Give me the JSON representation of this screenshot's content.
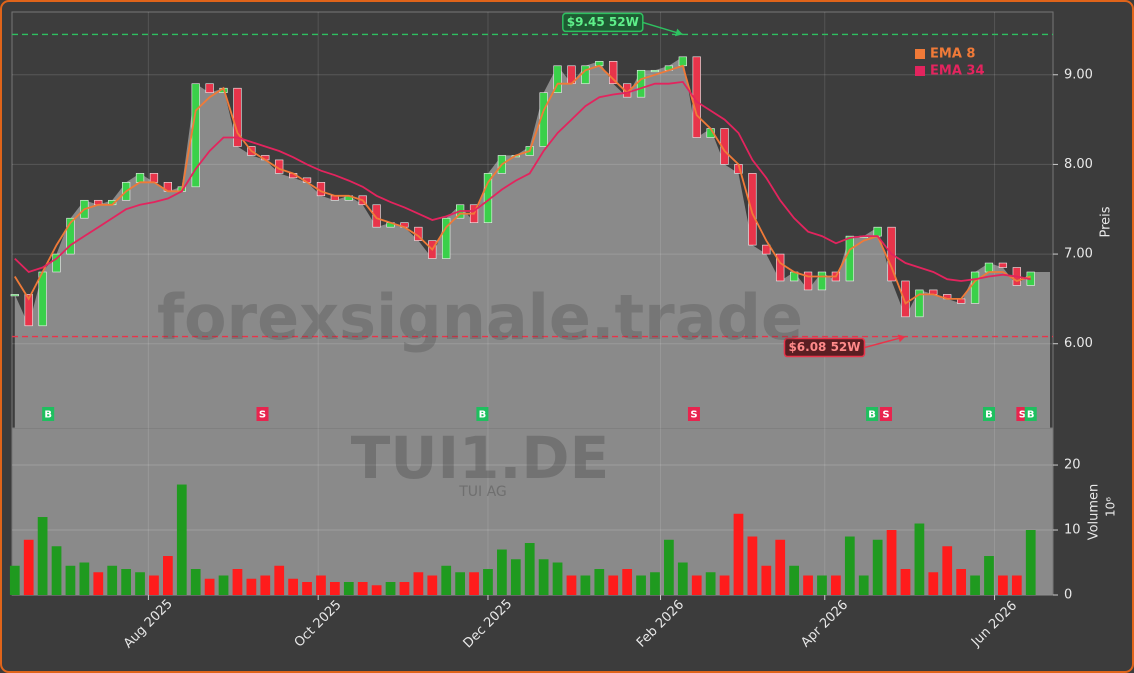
{
  "chart_data": [
    {
      "type": "candlestick",
      "watermark": "forexsignale.trade",
      "ticker": "TUI1.DE",
      "company": "TUI AG",
      "y_label": "Preis",
      "x": [
        0,
        5,
        10,
        15,
        20,
        25,
        30,
        35,
        40,
        45,
        50,
        55,
        60,
        65,
        70,
        75,
        80,
        85,
        90,
        95,
        100,
        105,
        110,
        115,
        120,
        125,
        130,
        135,
        140,
        145,
        150,
        155,
        160,
        165,
        170,
        175,
        180,
        185,
        190,
        195,
        200,
        205,
        210,
        215,
        220,
        225,
        230,
        235,
        240,
        245,
        250,
        255,
        260,
        265,
        270,
        275,
        280,
        285,
        290,
        295,
        300,
        305,
        310,
        315,
        320,
        325,
        330,
        335,
        340,
        345,
        350,
        355,
        360,
        365
      ],
      "values": [
        6.55,
        6.2,
        6.8,
        7.0,
        7.4,
        7.6,
        7.55,
        7.6,
        7.8,
        7.9,
        7.8,
        7.7,
        7.75,
        8.9,
        8.8,
        8.85,
        8.2,
        8.1,
        8.05,
        7.9,
        7.85,
        7.8,
        7.65,
        7.6,
        7.65,
        7.55,
        7.3,
        7.35,
        7.3,
        7.15,
        6.95,
        7.4,
        7.55,
        7.35,
        7.9,
        8.1,
        8.1,
        8.2,
        8.8,
        9.1,
        8.9,
        9.1,
        9.15,
        8.9,
        8.75,
        9.05,
        9.05,
        9.1,
        9.2,
        8.3,
        8.4,
        8.0,
        7.9,
        7.1,
        7.0,
        6.7,
        6.8,
        6.6,
        6.8,
        6.7,
        7.2,
        7.2,
        7.3,
        6.7,
        6.3,
        6.6,
        6.55,
        6.5,
        6.45,
        6.8,
        6.9,
        6.85,
        6.65,
        6.8
      ],
      "up_color": "#3ad04a",
      "down_color": "#e8344a",
      "area_color": "#8a8a8a",
      "series": [
        {
          "name": "EMA 8",
          "color": "#f07a38",
          "values": [
            6.75,
            6.5,
            6.8,
            7.1,
            7.35,
            7.5,
            7.55,
            7.55,
            7.7,
            7.8,
            7.8,
            7.7,
            7.7,
            8.6,
            8.75,
            8.85,
            8.35,
            8.15,
            8.05,
            7.95,
            7.9,
            7.8,
            7.7,
            7.65,
            7.65,
            7.6,
            7.4,
            7.35,
            7.3,
            7.2,
            7.05,
            7.3,
            7.45,
            7.45,
            7.8,
            8.0,
            8.1,
            8.15,
            8.6,
            8.9,
            8.9,
            9.05,
            9.1,
            8.95,
            8.8,
            8.95,
            9.0,
            9.05,
            9.1,
            8.55,
            8.4,
            8.15,
            8.0,
            7.45,
            7.15,
            6.9,
            6.8,
            6.75,
            6.75,
            6.75,
            7.05,
            7.15,
            7.2,
            6.85,
            6.45,
            6.55,
            6.55,
            6.5,
            6.5,
            6.7,
            6.8,
            6.8,
            6.7,
            6.75
          ]
        },
        {
          "name": "EMA 34",
          "color": "#e3245e",
          "values": [
            6.95,
            6.8,
            6.85,
            6.95,
            7.1,
            7.2,
            7.3,
            7.4,
            7.5,
            7.55,
            7.58,
            7.62,
            7.7,
            7.95,
            8.15,
            8.3,
            8.3,
            8.25,
            8.2,
            8.15,
            8.08,
            8.0,
            7.93,
            7.88,
            7.82,
            7.75,
            7.65,
            7.58,
            7.52,
            7.45,
            7.38,
            7.42,
            7.48,
            7.48,
            7.6,
            7.72,
            7.82,
            7.9,
            8.15,
            8.35,
            8.5,
            8.65,
            8.75,
            8.78,
            8.8,
            8.85,
            8.9,
            8.9,
            8.92,
            8.7,
            8.6,
            8.5,
            8.35,
            8.05,
            7.85,
            7.6,
            7.4,
            7.25,
            7.2,
            7.12,
            7.18,
            7.2,
            7.2,
            7.0,
            6.9,
            6.85,
            6.8,
            6.72,
            6.7,
            6.72,
            6.75,
            6.77,
            6.75,
            6.72
          ]
        }
      ],
      "annotations": [
        {
          "text": "$9.45 52W",
          "value": 9.45,
          "x": 240,
          "color": "#2ec060"
        },
        {
          "text": "$6.08 52W",
          "value": 6.08,
          "x": 320,
          "color": "#e8344a"
        }
      ],
      "signals": [
        {
          "x": 12,
          "label": "B",
          "color": "#1fbf5f"
        },
        {
          "x": 89,
          "label": "S",
          "color": "#e8244e"
        },
        {
          "x": 168,
          "label": "B",
          "color": "#1fbf5f"
        },
        {
          "x": 244,
          "label": "S",
          "color": "#e8244e"
        },
        {
          "x": 308,
          "label": "B",
          "color": "#1fbf5f"
        },
        {
          "x": 313,
          "label": "S",
          "color": "#e8244e"
        },
        {
          "x": 350,
          "label": "B",
          "color": "#1fbf5f"
        },
        {
          "x": 362,
          "label": "S",
          "color": "#e8244e"
        },
        {
          "x": 365,
          "label": "B",
          "color": "#1fbf5f"
        }
      ],
      "xlim": [
        -1,
        373
      ],
      "ylim": [
        5.06,
        9.7
      ],
      "yticks": [
        {
          "value": 6,
          "label": "6.00"
        },
        {
          "value": 7,
          "label": "7.00"
        },
        {
          "value": 8,
          "label": "8.00"
        },
        {
          "value": 9,
          "label": "9.00"
        }
      ],
      "legend": "top-right",
      "grid": true
    },
    {
      "type": "bar",
      "y_label": "Volumen",
      "y_unit": "10⁶",
      "x": [
        0,
        5,
        10,
        15,
        20,
        25,
        30,
        35,
        40,
        45,
        50,
        55,
        60,
        65,
        70,
        75,
        80,
        85,
        90,
        95,
        100,
        105,
        110,
        115,
        120,
        125,
        130,
        135,
        140,
        145,
        150,
        155,
        160,
        165,
        170,
        175,
        180,
        185,
        190,
        195,
        200,
        205,
        210,
        215,
        220,
        225,
        230,
        235,
        240,
        245,
        250,
        255,
        260,
        265,
        270,
        275,
        280,
        285,
        290,
        295,
        300,
        305,
        310,
        315,
        320,
        325,
        330,
        335,
        340,
        345,
        350,
        355,
        360,
        365
      ],
      "values": [
        4.5,
        8.5,
        12,
        7.5,
        4.5,
        5,
        3.5,
        4.5,
        4,
        3.5,
        3,
        6,
        17,
        4,
        2.5,
        3,
        4,
        2.5,
        3,
        4.5,
        2.5,
        2,
        3,
        2,
        2,
        2,
        1.5,
        2,
        2,
        3.5,
        3,
        4.5,
        3.5,
        3.5,
        4,
        7,
        5.5,
        8,
        5.5,
        5,
        3,
        3,
        4,
        3,
        4,
        3,
        3.5,
        8.5,
        5,
        3,
        3.5,
        3,
        12.5,
        9,
        4.5,
        8.5,
        4.5,
        3,
        3,
        3,
        9,
        3,
        8.5,
        10,
        4,
        11,
        3.5,
        7.5,
        4,
        3,
        6,
        3,
        3,
        10
      ],
      "up_color": "#1f9a1f",
      "down_color": "#ff1c1c",
      "xlim": [
        -1,
        373
      ],
      "ylim": [
        0,
        25.7
      ],
      "yticks": [
        0,
        10,
        20
      ],
      "xticks": [
        {
          "value": 48,
          "label": "Aug 2025"
        },
        {
          "value": 109,
          "label": "Oct 2025"
        },
        {
          "value": 170,
          "label": "Dec 2025"
        },
        {
          "value": 232,
          "label": "Feb 2026"
        },
        {
          "value": 291,
          "label": "Apr 2026"
        },
        {
          "value": 352,
          "label": "Jun 2026"
        }
      ],
      "grid": true
    }
  ]
}
